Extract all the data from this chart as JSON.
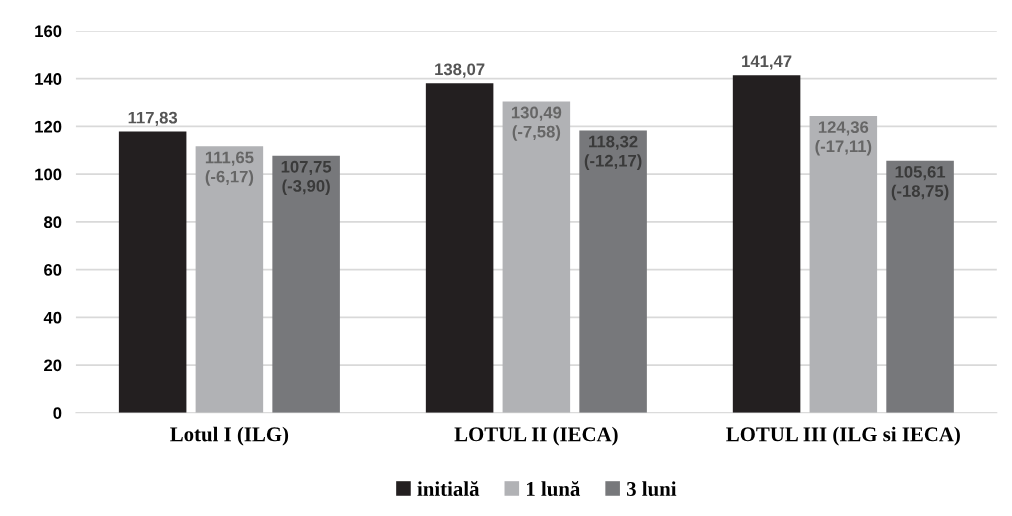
{
  "chart_data": {
    "type": "bar",
    "categories": [
      "Lotul I (ILG)",
      "LOTUL II (IECA)",
      "LOTUL III (ILG si IECA)"
    ],
    "series": [
      {
        "name": "initială",
        "color": "#231f20",
        "values": [
          117.83,
          138.07,
          141.47
        ],
        "value_labels": [
          "117,83",
          "138,07",
          "141,47"
        ]
      },
      {
        "name": "1 lună",
        "color": "#b1b2b5",
        "values": [
          111.65,
          130.49,
          124.36
        ],
        "value_labels": [
          "111,65\n(-6,17)",
          "130,49\n(-7,58)",
          "124,36\n(-17,11)"
        ]
      },
      {
        "name": "3 luni",
        "color": "#77787b",
        "values": [
          107.75,
          118.32,
          105.61
        ],
        "value_labels": [
          "107,75\n(-3,90)",
          "118,32\n(-12,17)",
          "105,61\n(-18,75)"
        ]
      }
    ],
    "ylim": [
      0,
      160
    ],
    "yticks": [
      0,
      20,
      40,
      60,
      80,
      100,
      120,
      140,
      160
    ],
    "grid": "y",
    "legend": "bottom"
  }
}
